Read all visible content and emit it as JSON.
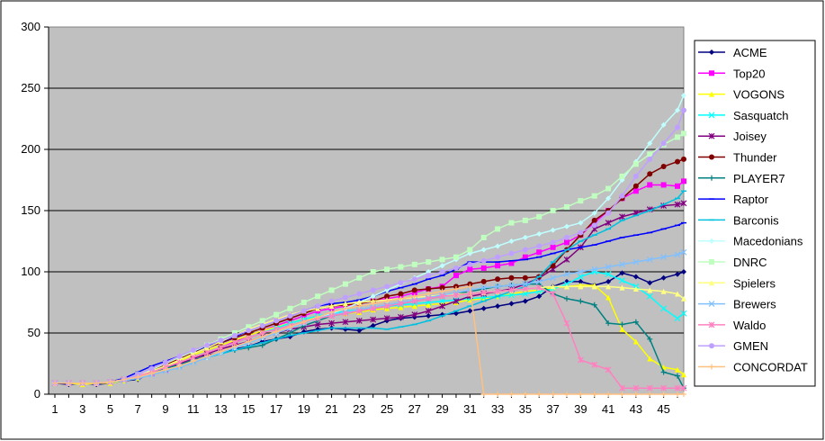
{
  "chart_data": {
    "type": "line",
    "title": "",
    "xlabel": "",
    "ylabel": "",
    "ylim": [
      0,
      300
    ],
    "y_ticks": [
      0,
      50,
      100,
      150,
      200,
      250,
      300
    ],
    "x_ticks": [
      1,
      3,
      5,
      7,
      9,
      11,
      13,
      15,
      17,
      19,
      21,
      23,
      25,
      27,
      29,
      31,
      33,
      35,
      37,
      39,
      41,
      43,
      45
    ],
    "xlim": [
      1,
      46
    ],
    "grid": "horizontal",
    "legend_position": "right",
    "plot_background": "#c0c0c0",
    "x": [
      1,
      2,
      3,
      4,
      5,
      6,
      7,
      8,
      9,
      10,
      11,
      12,
      13,
      14,
      15,
      16,
      17,
      18,
      19,
      20,
      21,
      22,
      23,
      24,
      25,
      26,
      27,
      28,
      29,
      30,
      31,
      32,
      33,
      34,
      35,
      36,
      37,
      38,
      39,
      40,
      41,
      42,
      43,
      44,
      45,
      46,
      47
    ],
    "series": [
      {
        "name": "ACME",
        "color": "#000080",
        "marker": "diamond",
        "values": [
          9,
          8,
          9,
          8,
          9,
          11,
          12,
          18,
          20,
          25,
          30,
          32,
          34,
          37,
          39,
          43,
          45,
          47,
          51,
          53,
          54,
          53,
          52,
          56,
          60,
          62,
          63,
          64,
          65,
          66,
          68,
          70,
          72,
          74,
          76,
          80,
          88,
          92,
          92,
          89,
          92,
          99,
          96,
          91,
          95,
          98,
          100
        ]
      },
      {
        "name": "Top20",
        "color": "#ff00ff",
        "marker": "square",
        "values": [
          9,
          9,
          9,
          9,
          10,
          12,
          15,
          17,
          20,
          25,
          30,
          34,
          38,
          43,
          48,
          52,
          56,
          60,
          64,
          68,
          70,
          72,
          74,
          76,
          78,
          80,
          83,
          86,
          88,
          97,
          102,
          103,
          105,
          107,
          112,
          116,
          120,
          124,
          130,
          140,
          150,
          160,
          166,
          171,
          171,
          170,
          174
        ]
      },
      {
        "name": "VOGONS",
        "color": "#ffff00",
        "marker": "triangle",
        "values": [
          9,
          9,
          8,
          9,
          9,
          11,
          13,
          18,
          22,
          27,
          32,
          36,
          40,
          44,
          48,
          52,
          55,
          58,
          61,
          63,
          65,
          66,
          67,
          69,
          70,
          71,
          72,
          73,
          74,
          75,
          77,
          78,
          80,
          82,
          84,
          85,
          87,
          88,
          89,
          89,
          79,
          53,
          43,
          29,
          22,
          20,
          16
        ]
      },
      {
        "name": "Sasquatch",
        "color": "#00ffff",
        "marker": "x",
        "values": [
          9,
          9,
          9,
          9,
          10,
          12,
          15,
          18,
          22,
          26,
          30,
          34,
          38,
          42,
          46,
          50,
          54,
          58,
          61,
          64,
          66,
          68,
          69,
          71,
          72,
          73,
          74,
          75,
          76,
          77,
          78,
          79,
          80,
          81,
          82,
          84,
          86,
          90,
          96,
          100,
          98,
          93,
          88,
          80,
          70,
          62,
          66
        ]
      },
      {
        "name": "Joisey",
        "color": "#800080",
        "marker": "asterisk",
        "values": [
          9,
          9,
          9,
          9,
          10,
          12,
          15,
          18,
          21,
          25,
          29,
          33,
          37,
          40,
          43,
          47,
          50,
          53,
          55,
          57,
          58,
          59,
          60,
          61,
          62,
          63,
          65,
          68,
          72,
          76,
          80,
          82,
          84,
          86,
          90,
          95,
          102,
          110,
          120,
          135,
          140,
          145,
          148,
          151,
          154,
          155,
          156
        ]
      },
      {
        "name": "Thunder",
        "color": "#800000",
        "marker": "circle",
        "values": [
          9,
          9,
          9,
          9,
          10,
          12,
          15,
          19,
          24,
          29,
          34,
          38,
          42,
          46,
          50,
          54,
          58,
          62,
          66,
          70,
          72,
          73,
          74,
          76,
          80,
          82,
          85,
          86,
          87,
          88,
          90,
          92,
          94,
          95,
          95,
          96,
          105,
          118,
          130,
          142,
          150,
          160,
          170,
          180,
          186,
          190,
          192
        ]
      },
      {
        "name": "PLAYER7",
        "color": "#008080",
        "marker": "plus",
        "values": [
          9,
          9,
          9,
          9,
          10,
          12,
          15,
          18,
          21,
          24,
          28,
          31,
          34,
          36,
          38,
          40,
          45,
          50,
          56,
          60,
          64,
          66,
          68,
          70,
          72,
          74,
          76,
          78,
          80,
          82,
          84,
          86,
          88,
          89,
          90,
          90,
          82,
          78,
          76,
          73,
          58,
          57,
          59,
          45,
          18,
          15,
          5
        ]
      },
      {
        "name": "Raptor",
        "color": "#0000ff",
        "marker": "dash",
        "values": [
          9,
          9,
          9,
          9,
          10,
          13,
          18,
          23,
          27,
          31,
          35,
          39,
          43,
          47,
          52,
          56,
          60,
          64,
          68,
          72,
          74,
          75,
          77,
          80,
          84,
          87,
          90,
          94,
          97,
          102,
          108,
          108,
          108,
          109,
          110,
          112,
          115,
          118,
          120,
          122,
          125,
          128,
          130,
          132,
          135,
          138,
          140
        ]
      },
      {
        "name": "Barconis",
        "color": "#00c0e0",
        "marker": "dash",
        "values": [
          9,
          9,
          9,
          9,
          10,
          11,
          13,
          16,
          19,
          22,
          26,
          30,
          33,
          36,
          39,
          42,
          45,
          48,
          50,
          52,
          54,
          54,
          54,
          54,
          53,
          55,
          57,
          60,
          64,
          68,
          72,
          76,
          80,
          84,
          88,
          96,
          108,
          118,
          125,
          130,
          135,
          142,
          146,
          150,
          155,
          160,
          166
        ]
      },
      {
        "name": "Macedonians",
        "color": "#c0ffff",
        "marker": "diamond",
        "values": [
          9,
          9,
          9,
          9,
          10,
          12,
          14,
          17,
          20,
          23,
          27,
          30,
          34,
          38,
          42,
          46,
          50,
          54,
          58,
          62,
          66,
          70,
          75,
          80,
          85,
          90,
          95,
          100,
          105,
          110,
          115,
          118,
          121,
          125,
          128,
          131,
          134,
          137,
          140,
          148,
          160,
          175,
          190,
          205,
          220,
          232,
          244
        ]
      },
      {
        "name": "DNRC",
        "color": "#c0ffc0",
        "marker": "square",
        "values": [
          9,
          9,
          9,
          9,
          10,
          12,
          16,
          20,
          25,
          30,
          35,
          40,
          45,
          50,
          55,
          60,
          65,
          70,
          75,
          80,
          85,
          90,
          95,
          100,
          102,
          104,
          106,
          108,
          110,
          112,
          118,
          128,
          135,
          140,
          142,
          145,
          150,
          153,
          158,
          162,
          168,
          178,
          188,
          196,
          204,
          210,
          213
        ]
      },
      {
        "name": "Spielers",
        "color": "#ffff80",
        "marker": "triangle",
        "values": [
          9,
          9,
          9,
          9,
          10,
          12,
          15,
          19,
          23,
          28,
          33,
          38,
          43,
          48,
          53,
          57,
          61,
          65,
          68,
          70,
          72,
          74,
          75,
          76,
          77,
          78,
          79,
          80,
          81,
          82,
          82,
          83,
          84,
          85,
          86,
          87,
          88,
          88,
          88,
          88,
          88,
          87,
          86,
          85,
          84,
          82,
          78
        ]
      },
      {
        "name": "Brewers",
        "color": "#80c0ff",
        "marker": "x",
        "values": [
          9,
          9,
          9,
          9,
          10,
          11,
          13,
          16,
          19,
          22,
          26,
          30,
          34,
          38,
          42,
          46,
          50,
          54,
          58,
          62,
          65,
          67,
          69,
          71,
          73,
          75,
          77,
          79,
          81,
          83,
          85,
          87,
          88,
          89,
          90,
          92,
          95,
          98,
          100,
          102,
          104,
          106,
          108,
          110,
          112,
          114,
          116
        ]
      },
      {
        "name": "Waldo",
        "color": "#ff80c0",
        "marker": "asterisk",
        "values": [
          9,
          9,
          9,
          9,
          10,
          12,
          15,
          18,
          22,
          26,
          30,
          34,
          38,
          42,
          46,
          50,
          53,
          56,
          59,
          62,
          64,
          66,
          68,
          70,
          72,
          74,
          76,
          78,
          80,
          81,
          82,
          83,
          84,
          85,
          86,
          87,
          82,
          58,
          28,
          24,
          20,
          5,
          5,
          5,
          5,
          5,
          5
        ]
      },
      {
        "name": "GMEN",
        "color": "#c0a0ff",
        "marker": "circle",
        "values": [
          9,
          9,
          9,
          9,
          10,
          12,
          16,
          21,
          26,
          31,
          36,
          40,
          44,
          48,
          52,
          56,
          60,
          64,
          68,
          72,
          76,
          79,
          82,
          85,
          88,
          91,
          94,
          97,
          100,
          103,
          106,
          109,
          112,
          115,
          118,
          121,
          124,
          128,
          132,
          138,
          148,
          162,
          178,
          192,
          205,
          218,
          232
        ]
      },
      {
        "name": "CONCORDAT",
        "color": "#ffc080",
        "marker": "plus",
        "values": [
          9,
          9,
          9,
          9,
          10,
          12,
          14,
          17,
          20,
          23,
          27,
          31,
          35,
          39,
          43,
          47,
          51,
          55,
          59,
          63,
          67,
          70,
          72,
          74,
          76,
          78,
          80,
          82,
          84,
          86,
          88,
          0,
          0,
          0,
          0,
          0,
          0,
          0,
          0,
          0,
          0,
          0,
          0,
          0,
          0,
          0,
          0
        ]
      }
    ]
  }
}
